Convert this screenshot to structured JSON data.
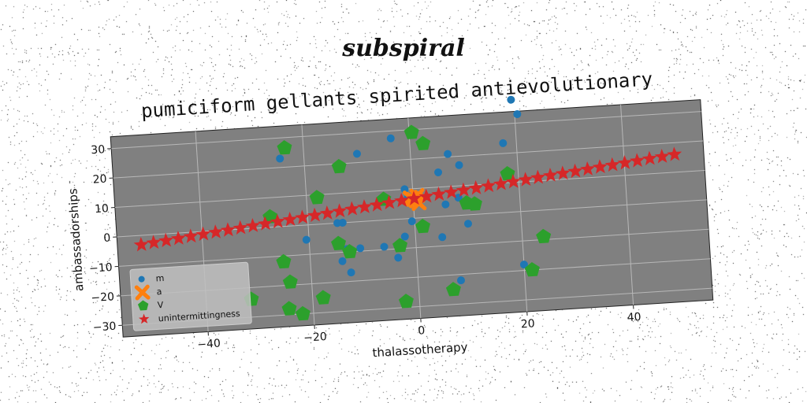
{
  "suptitle": "subspiral",
  "chart_data": {
    "type": "scatter",
    "title": "pumiciform gellants spirited antievolutionary",
    "xlabel": "thalassotherapy",
    "ylabel": "ambassadorships",
    "xlim": [
      -56,
      55
    ],
    "ylim": [
      -34,
      34
    ],
    "xticks": [
      -40,
      -20,
      0,
      20,
      40
    ],
    "yticks": [
      -30,
      -20,
      -10,
      0,
      10,
      20,
      30
    ],
    "grid": true,
    "legend_position": "lower-left",
    "background": "#808080",
    "series": [
      {
        "name": "m",
        "marker": "circle",
        "color": "#1f77b4",
        "points": [
          [
            19.5,
            38
          ],
          [
            20.5,
            33
          ],
          [
            -24.5,
            23
          ],
          [
            -10,
            23
          ],
          [
            -3.5,
            27.5
          ],
          [
            7,
            21
          ],
          [
            9,
            17
          ],
          [
            5,
            15
          ],
          [
            17.5,
            23.5
          ],
          [
            -1.5,
            10
          ],
          [
            8.5,
            6
          ],
          [
            -1,
            7
          ],
          [
            6,
            4
          ],
          [
            -14.5,
            0
          ],
          [
            -13.5,
            0
          ],
          [
            -0.5,
            -1
          ],
          [
            10,
            -3
          ],
          [
            -20.5,
            -5
          ],
          [
            -2,
            -6
          ],
          [
            5,
            -7
          ],
          [
            -13,
            -9
          ],
          [
            -10.5,
            -9
          ],
          [
            -6,
            -9
          ],
          [
            -14,
            -13
          ],
          [
            -3.5,
            -13
          ],
          [
            -12.5,
            -17
          ],
          [
            20,
            -18
          ],
          [
            8,
            -22
          ]
        ]
      },
      {
        "name": "a",
        "marker": "x",
        "color": "#ff7f0e",
        "points": [
          [
            -0.5,
            7
          ],
          [
            0.5,
            6
          ],
          [
            1,
            5
          ],
          [
            0,
            6.5
          ],
          [
            0.8,
            7.5
          ]
        ]
      },
      {
        "name": "V",
        "marker": "pentagon",
        "color": "#2ca02c",
        "points": [
          [
            -23.5,
            26.5
          ],
          [
            0.5,
            29
          ],
          [
            2.5,
            25
          ],
          [
            -13.5,
            19
          ],
          [
            18,
            13
          ],
          [
            -18,
            9
          ],
          [
            -5.5,
            7
          ],
          [
            10,
            4
          ],
          [
            11.5,
            3.5
          ],
          [
            -27,
            3.5
          ],
          [
            1.5,
            -3
          ],
          [
            -14.5,
            -7
          ],
          [
            -12.5,
            -10
          ],
          [
            -3,
            -9
          ],
          [
            24,
            -9
          ],
          [
            -25,
            -12
          ],
          [
            -24,
            -19
          ],
          [
            21.5,
            -20
          ],
          [
            -31.5,
            -24
          ],
          [
            -18,
            -25
          ],
          [
            6.5,
            -25
          ],
          [
            -24.5,
            -28
          ],
          [
            -22,
            -30
          ],
          [
            -2.5,
            -28
          ]
        ]
      },
      {
        "name": "unintermittingness",
        "marker": "star",
        "color": "#d62728",
        "line": {
          "x_start": -51.5,
          "x_end": 49.5,
          "y_start": -3.2,
          "y_end": 16.0,
          "count": 44
        }
      }
    ]
  }
}
